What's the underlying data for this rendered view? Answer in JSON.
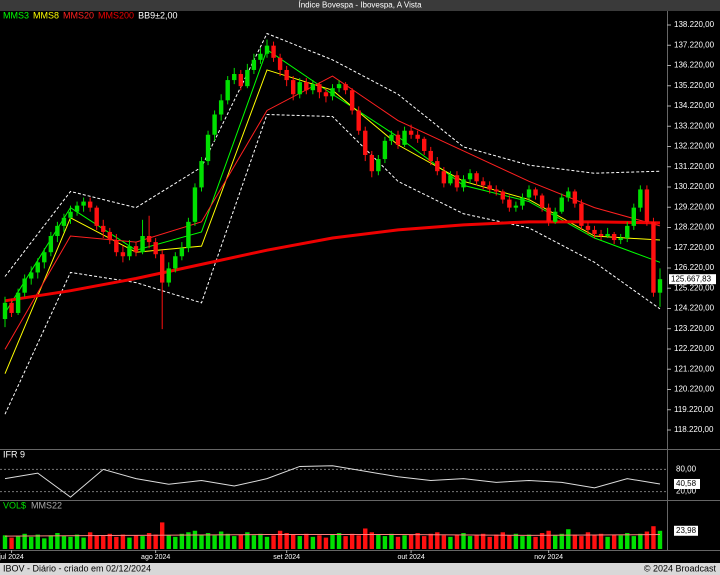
{
  "chart_data": {
    "type": "candlestick",
    "title": "Índice Bovespa - Ibovespa, A Vista",
    "footer_left": "IBOV - Diário - criado em 02/12/2024",
    "footer_right": "© 2024 Broadcast",
    "up_color": "#00e000",
    "down_color": "#ff1010",
    "ylim": [
      117380,
      138862
    ],
    "yticks": [
      {
        "value": 118220,
        "label": "118.220,00"
      },
      {
        "value": 119220,
        "label": "119.220,00"
      },
      {
        "value": 120220,
        "label": "120.220,00"
      },
      {
        "value": 121220,
        "label": "121.220,00"
      },
      {
        "value": 122220,
        "label": "122.220,00"
      },
      {
        "value": 123220,
        "label": "123.220,00"
      },
      {
        "value": 124220,
        "label": "124.220,00"
      },
      {
        "value": 125220,
        "label": "125.220,00"
      },
      {
        "value": 126220,
        "label": "126.220,00"
      },
      {
        "value": 127220,
        "label": "127.220,00"
      },
      {
        "value": 128220,
        "label": "128.220,00"
      },
      {
        "value": 129220,
        "label": "129.220,00"
      },
      {
        "value": 130220,
        "label": "130.220,00"
      },
      {
        "value": 131220,
        "label": "131.220,00"
      },
      {
        "value": 132220,
        "label": "132.220,00"
      },
      {
        "value": 133220,
        "label": "133.220,00"
      },
      {
        "value": 134220,
        "label": "134.220,00"
      },
      {
        "value": 135220,
        "label": "135.220,00"
      },
      {
        "value": 136220,
        "label": "136.220,00"
      },
      {
        "value": 137220,
        "label": "137.220,00"
      },
      {
        "value": 138220,
        "label": "138.220,00"
      }
    ],
    "last_price": {
      "value": 125667.83,
      "label": "125.667,83"
    },
    "x_labels": [
      {
        "index": 1,
        "label": "jul 2024"
      },
      {
        "index": 23,
        "label": "ago 2024"
      },
      {
        "index": 43,
        "label": "set 2024"
      },
      {
        "index": 62,
        "label": "out 2024"
      },
      {
        "index": 83,
        "label": "nov 2024"
      }
    ],
    "ohlc": [
      [
        123700,
        124800,
        123300,
        124500
      ],
      [
        124500,
        124700,
        123800,
        124000
      ],
      [
        124000,
        125200,
        123900,
        125000
      ],
      [
        125000,
        125900,
        124800,
        125700
      ],
      [
        125700,
        126300,
        125400,
        126000
      ],
      [
        126000,
        126700,
        125700,
        126500
      ],
      [
        126500,
        127200,
        126200,
        127000
      ],
      [
        127000,
        128000,
        126800,
        127800
      ],
      [
        127800,
        128500,
        127500,
        128300
      ],
      [
        128300,
        128900,
        128000,
        128700
      ],
      [
        128700,
        129300,
        128400,
        129000
      ],
      [
        129000,
        129500,
        128800,
        129300
      ],
      [
        129300,
        129700,
        129000,
        129500
      ],
      [
        129500,
        129700,
        129000,
        129200
      ],
      [
        129200,
        129300,
        128100,
        128300
      ],
      [
        128300,
        128600,
        127700,
        128000
      ],
      [
        128000,
        128200,
        127400,
        127600
      ],
      [
        127600,
        127900,
        126800,
        127000
      ],
      [
        127000,
        127300,
        126500,
        126800
      ],
      [
        126800,
        127600,
        126600,
        127300
      ],
      [
        127300,
        127500,
        126800,
        127000
      ],
      [
        127000,
        128600,
        126900,
        127800
      ],
      [
        127800,
        128800,
        127200,
        127500
      ],
      [
        127500,
        127700,
        126700,
        126900
      ],
      [
        126900,
        127100,
        123200,
        125500
      ],
      [
        125500,
        126500,
        125300,
        126200
      ],
      [
        126200,
        127000,
        126000,
        126800
      ],
      [
        126800,
        127500,
        126600,
        127200
      ],
      [
        127200,
        128700,
        127000,
        128500
      ],
      [
        128500,
        130400,
        128300,
        130200
      ],
      [
        130200,
        131700,
        130000,
        131500
      ],
      [
        131500,
        133000,
        131300,
        132800
      ],
      [
        132800,
        134000,
        132500,
        133800
      ],
      [
        133800,
        134800,
        133500,
        134500
      ],
      [
        134500,
        135700,
        134300,
        135500
      ],
      [
        135500,
        136100,
        135300,
        135800
      ],
      [
        135800,
        136000,
        135000,
        135200
      ],
      [
        135200,
        136300,
        135100,
        136000
      ],
      [
        136000,
        136800,
        135800,
        136500
      ],
      [
        136500,
        137100,
        136300,
        136800
      ],
      [
        136800,
        137500,
        136600,
        137200
      ],
      [
        137200,
        137400,
        136400,
        136600
      ],
      [
        136600,
        136800,
        135700,
        136000
      ],
      [
        136000,
        136200,
        135200,
        135500
      ],
      [
        135500,
        135700,
        134500,
        134800
      ],
      [
        134800,
        135600,
        134600,
        135400
      ],
      [
        135400,
        135600,
        134800,
        135000
      ],
      [
        135000,
        135500,
        134800,
        135300
      ],
      [
        135300,
        135400,
        134600,
        134900
      ],
      [
        134900,
        135100,
        134400,
        134700
      ],
      [
        134700,
        135300,
        134500,
        135100
      ],
      [
        135100,
        135500,
        134900,
        135300
      ],
      [
        135300,
        135400,
        134800,
        135000
      ],
      [
        135000,
        135100,
        133800,
        134000
      ],
      [
        134000,
        134200,
        132800,
        133000
      ],
      [
        133000,
        133200,
        131500,
        131800
      ],
      [
        131800,
        132000,
        130700,
        131000
      ],
      [
        131000,
        131800,
        130800,
        131600
      ],
      [
        131600,
        132700,
        131400,
        132500
      ],
      [
        132500,
        133000,
        132300,
        132800
      ],
      [
        132800,
        133000,
        132100,
        132300
      ],
      [
        132300,
        133200,
        132200,
        133000
      ],
      [
        133000,
        133300,
        132600,
        132800
      ],
      [
        132800,
        133000,
        132400,
        132600
      ],
      [
        132600,
        132700,
        131800,
        132000
      ],
      [
        132000,
        132200,
        131300,
        131500
      ],
      [
        131500,
        131700,
        130800,
        131000
      ],
      [
        131000,
        131200,
        130200,
        130400
      ],
      [
        130400,
        131000,
        130300,
        130800
      ],
      [
        130800,
        131000,
        130000,
        130200
      ],
      [
        130200,
        130800,
        130000,
        130600
      ],
      [
        130600,
        131100,
        130400,
        130900
      ],
      [
        130900,
        131000,
        130300,
        130500
      ],
      [
        130500,
        130700,
        130100,
        130300
      ],
      [
        130300,
        130500,
        129900,
        130100
      ],
      [
        130100,
        130300,
        129800,
        130000
      ],
      [
        130000,
        130100,
        129400,
        129600
      ],
      [
        129600,
        129800,
        129000,
        129200
      ],
      [
        129200,
        129500,
        129000,
        129300
      ],
      [
        129300,
        129900,
        129100,
        129700
      ],
      [
        129700,
        130300,
        129500,
        130100
      ],
      [
        130100,
        130200,
        129600,
        129800
      ],
      [
        129800,
        129900,
        129000,
        129200
      ],
      [
        129200,
        129400,
        128300,
        128500
      ],
      [
        128500,
        129200,
        128400,
        129000
      ],
      [
        129000,
        129900,
        128900,
        129700
      ],
      [
        129700,
        130200,
        129500,
        130000
      ],
      [
        130000,
        130100,
        129200,
        129400
      ],
      [
        129400,
        129600,
        128100,
        128300
      ],
      [
        128300,
        128500,
        127900,
        128100
      ],
      [
        128100,
        128300,
        127700,
        127900
      ],
      [
        127900,
        128100,
        127600,
        127800
      ],
      [
        127800,
        128200,
        127700,
        127900
      ],
      [
        127900,
        128000,
        127400,
        127600
      ],
      [
        127600,
        127900,
        127400,
        127700
      ],
      [
        127700,
        128500,
        127500,
        128300
      ],
      [
        128300,
        129400,
        128100,
        129200
      ],
      [
        129200,
        130300,
        129000,
        130100
      ],
      [
        130100,
        130300,
        128300,
        128500
      ],
      [
        128500,
        128700,
        124800,
        125000
      ],
      [
        125000,
        126200,
        124300,
        125667.83
      ]
    ],
    "overlays": [
      {
        "name": "MMS3",
        "color": "#00ff00",
        "width": 1,
        "x": [
          0,
          10,
          20,
          30,
          40,
          50,
          60,
          70,
          80,
          90,
          100
        ],
        "values": [
          124000,
          129200,
          127100,
          128000,
          137000,
          134800,
          132700,
          130300,
          129500,
          127700,
          126500
        ]
      },
      {
        "name": "MMS8",
        "color": "#ffff00",
        "width": 1,
        "x": [
          0,
          10,
          20,
          30,
          40,
          50,
          60,
          70,
          80,
          90,
          100
        ],
        "values": [
          121000,
          128700,
          127000,
          127300,
          136000,
          135000,
          132300,
          130500,
          129600,
          127800,
          127600
        ]
      },
      {
        "name": "MMS20",
        "color": "#ff2020",
        "width": 1,
        "x": [
          0,
          10,
          20,
          30,
          40,
          50,
          60,
          70,
          80,
          90,
          100
        ],
        "values": [
          122200,
          127800,
          127500,
          128500,
          134000,
          135700,
          133500,
          132000,
          130500,
          129200,
          128300
        ]
      },
      {
        "name": "MMS200",
        "color": "#ee0000",
        "width": 3,
        "x": [
          0,
          10,
          20,
          30,
          40,
          50,
          60,
          70,
          80,
          90,
          100
        ],
        "values": [
          124600,
          125100,
          125700,
          126400,
          127100,
          127700,
          128100,
          128350,
          128500,
          128500,
          128450
        ]
      }
    ],
    "bands": {
      "name": "BB9±2,00",
      "color": "#ffffff",
      "x": [
        0,
        10,
        20,
        30,
        40,
        50,
        60,
        70,
        80,
        90,
        100
      ],
      "upper": [
        125800,
        130000,
        129200,
        131200,
        137800,
        136500,
        134800,
        132200,
        131300,
        130900,
        131000
      ],
      "lower": [
        119000,
        126000,
        125500,
        124500,
        133800,
        133700,
        130500,
        128900,
        128200,
        126500,
        124200
      ]
    },
    "rsi": {
      "name": "IFR 9",
      "ylim": [
        0,
        100
      ],
      "yticks": [
        {
          "value": 80,
          "label": "80,00"
        },
        {
          "value": 20,
          "label": "20,00"
        }
      ],
      "x": [
        0,
        5,
        10,
        15,
        20,
        25,
        30,
        35,
        40,
        45,
        50,
        55,
        60,
        65,
        70,
        75,
        80,
        85,
        90,
        95,
        100
      ],
      "values": [
        55,
        70,
        5,
        80,
        55,
        40,
        50,
        35,
        55,
        88,
        90,
        75,
        60,
        50,
        55,
        45,
        50,
        45,
        30,
        55,
        40.58
      ],
      "last_label": "40,58"
    },
    "volume": {
      "name": "VOL$",
      "ylim": [
        0,
        50
      ],
      "last_label": "23,98",
      "values": [
        18,
        15,
        17,
        20,
        16,
        19,
        14,
        18,
        21,
        17,
        16,
        19,
        15,
        22,
        18,
        17,
        20,
        16,
        19,
        15,
        18,
        17,
        21,
        19,
        35,
        18,
        16,
        20,
        22,
        24,
        19,
        21,
        18,
        23,
        20,
        17,
        19,
        22,
        18,
        20,
        16,
        18,
        24,
        21,
        19,
        17,
        20,
        16,
        18,
        15,
        19,
        21,
        17,
        20,
        18,
        27,
        22,
        19,
        17,
        20,
        16,
        18,
        19,
        21,
        17,
        20,
        22,
        18,
        16,
        19,
        21,
        17,
        18,
        20,
        16,
        19,
        22,
        18,
        20,
        17,
        19,
        16,
        21,
        24,
        18,
        20,
        26,
        19,
        17,
        22,
        18,
        20,
        16,
        19,
        18,
        21,
        17,
        20,
        23,
        30,
        23.98
      ],
      "ma": {
        "name": "MMS22",
        "color": "#ff8080",
        "x": [
          0,
          20,
          40,
          60,
          80,
          100
        ],
        "values": [
          17,
          18,
          19,
          19,
          18,
          19
        ]
      }
    }
  }
}
